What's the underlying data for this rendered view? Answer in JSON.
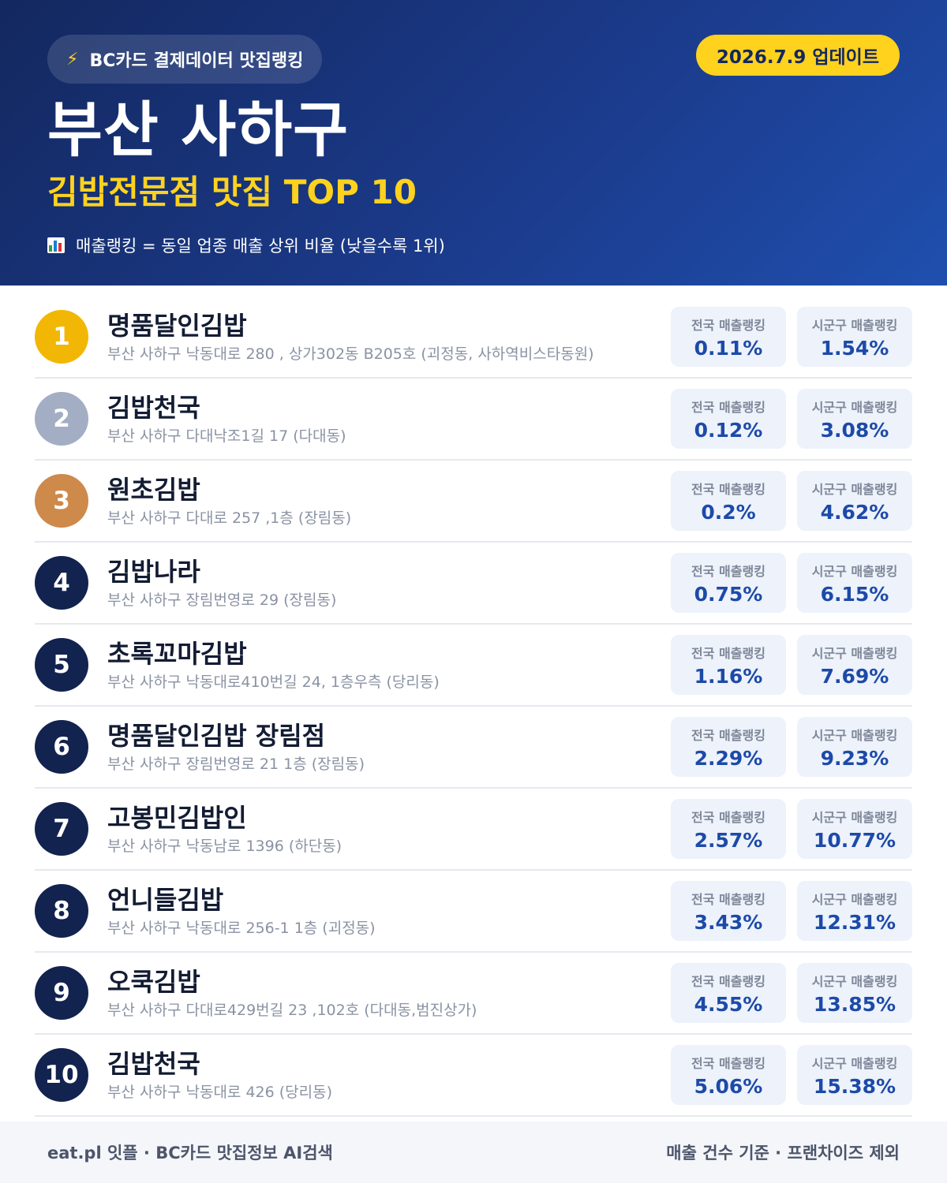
{
  "header": {
    "source_label": "BC카드 결제데이터 맛집랭킹",
    "update_label": "2026.7.9 업데이트",
    "title": "부산 사하구",
    "subtitle": "김밥전문점 맛집 TOP 10",
    "note": "매출랭킹 = 동일 업종 매출 상위 비율 (낮을수록 1위)",
    "icons": {
      "source": "lightning-icon",
      "note": "bar-chart-icon"
    },
    "colors": {
      "accent": "#ffd21e",
      "bg_start": "#13285f",
      "bg_end": "#1f4fae"
    }
  },
  "stat_labels": {
    "national": "전국 매출랭킹",
    "district": "시군구 매출랭킹"
  },
  "restaurants": [
    {
      "rank": "1",
      "name": "명품달인김밥",
      "address": "부산 사하구 낙동대로 280 , 상가302동 B205호 (괴정동, 사하역비스타동원)",
      "national": "0.11%",
      "district": "1.54%",
      "medal": "gold"
    },
    {
      "rank": "2",
      "name": "김밥천국",
      "address": "부산 사하구 다대낙조1길 17 (다대동)",
      "national": "0.12%",
      "district": "3.08%",
      "medal": "silver"
    },
    {
      "rank": "3",
      "name": "원초김밥",
      "address": "부산 사하구 다대로 257 ,1층 (장림동)",
      "national": "0.2%",
      "district": "4.62%",
      "medal": "bronze"
    },
    {
      "rank": "4",
      "name": "김밥나라",
      "address": "부산 사하구 장림번영로 29 (장림동)",
      "national": "0.75%",
      "district": "6.15%",
      "medal": "none"
    },
    {
      "rank": "5",
      "name": "초록꼬마김밥",
      "address": "부산 사하구 낙동대로410번길 24, 1층우측 (당리동)",
      "national": "1.16%",
      "district": "7.69%",
      "medal": "none"
    },
    {
      "rank": "6",
      "name": "명품달인김밥 장림점",
      "address": "부산 사하구 장림번영로 21 1층 (장림동)",
      "national": "2.29%",
      "district": "9.23%",
      "medal": "none"
    },
    {
      "rank": "7",
      "name": "고봉민김밥인",
      "address": "부산 사하구 낙동남로 1396 (하단동)",
      "national": "2.57%",
      "district": "10.77%",
      "medal": "none"
    },
    {
      "rank": "8",
      "name": "언니들김밥",
      "address": "부산 사하구 낙동대로 256-1 1층 (괴정동)",
      "national": "3.43%",
      "district": "12.31%",
      "medal": "none"
    },
    {
      "rank": "9",
      "name": "오쿡김밥",
      "address": "부산 사하구 다대로429번길 23 ,102호 (다대동,범진상가)",
      "national": "4.55%",
      "district": "13.85%",
      "medal": "none"
    },
    {
      "rank": "10",
      "name": "김밥천국",
      "address": "부산 사하구 낙동대로 426 (당리동)",
      "national": "5.06%",
      "district": "15.38%",
      "medal": "none"
    }
  ],
  "footer": {
    "left": "eat.pl 잇플 · BC카드 맛집정보 AI검색",
    "right": "매출 건수 기준 · 프랜차이즈 제외"
  }
}
